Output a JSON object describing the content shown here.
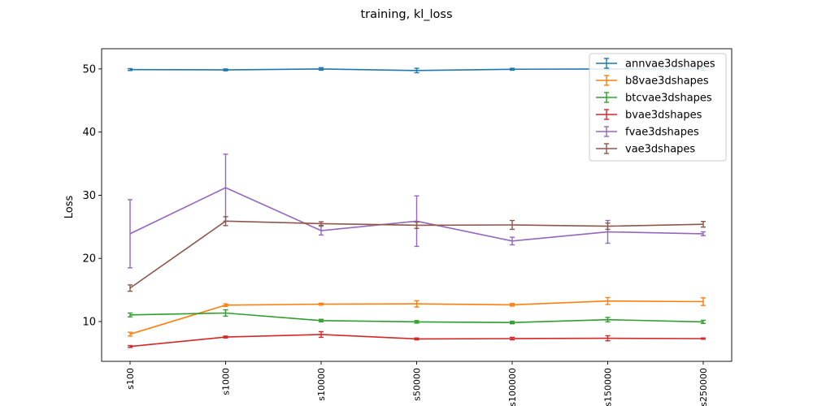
{
  "chart_data": {
    "type": "line",
    "title": "training, kl_loss",
    "xlabel": "",
    "ylabel": "Loss",
    "categories": [
      "s100",
      "s1000",
      "s10000",
      "s50000",
      "s100000",
      "s150000",
      "s250000"
    ],
    "ylim": [
      3.7,
      53.2
    ],
    "yticks": [
      10,
      20,
      30,
      40,
      50
    ],
    "grid": false,
    "legend_position": "top-right",
    "series": [
      {
        "name": "annvae3dshapes",
        "color": "#1f77b4",
        "values": [
          49.9,
          49.85,
          50.0,
          49.75,
          49.95,
          50.0,
          50.0
        ],
        "errors": [
          0.15,
          0.15,
          0.2,
          0.35,
          0.15,
          0.2,
          0.2
        ]
      },
      {
        "name": "b8vae3dshapes",
        "color": "#ff7f0e",
        "values": [
          8.0,
          12.6,
          12.75,
          12.8,
          12.65,
          13.25,
          13.15
        ],
        "errors": [
          0.3,
          0.2,
          0.15,
          0.5,
          0.2,
          0.55,
          0.6
        ]
      },
      {
        "name": "btcvae3dshapes",
        "color": "#2ca02c",
        "values": [
          11.05,
          11.35,
          10.15,
          9.95,
          9.85,
          10.3,
          9.95
        ],
        "errors": [
          0.3,
          0.5,
          0.2,
          0.2,
          0.2,
          0.35,
          0.25
        ]
      },
      {
        "name": "bvae3dshapes",
        "color": "#d62728",
        "values": [
          6.05,
          7.55,
          7.95,
          7.25,
          7.3,
          7.35,
          7.3
        ],
        "errors": [
          0.15,
          0.15,
          0.45,
          0.15,
          0.2,
          0.4,
          0.1
        ]
      },
      {
        "name": "fvae3dshapes",
        "color": "#9467bd",
        "values": [
          23.9,
          31.2,
          24.4,
          25.9,
          22.75,
          24.2,
          23.9
        ],
        "errors": [
          5.4,
          5.3,
          0.7,
          4.0,
          0.6,
          1.8,
          0.3
        ]
      },
      {
        "name": "vae3dshapes",
        "color": "#8c564b",
        "values": [
          15.3,
          25.9,
          25.5,
          25.25,
          25.3,
          25.1,
          25.4
        ],
        "errors": [
          0.5,
          0.7,
          0.3,
          0.5,
          0.7,
          0.5,
          0.45
        ]
      }
    ]
  }
}
